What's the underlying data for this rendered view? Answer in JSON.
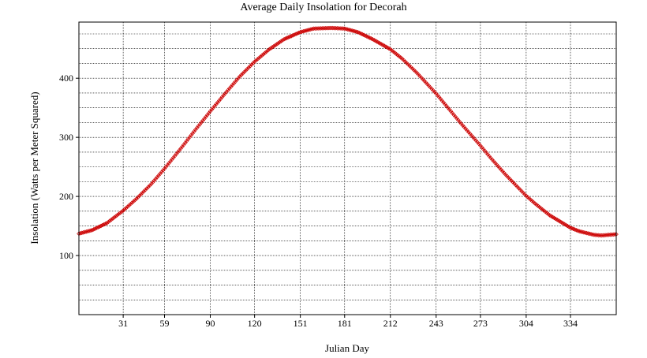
{
  "chart_data": {
    "type": "scatter",
    "title": "Average Daily Insolation for Decorah",
    "xlabel": "Julian Day",
    "ylabel": "Insolation (Watts per Meter Squared)",
    "xlim": [
      1,
      365
    ],
    "ylim": [
      0,
      495
    ],
    "x_ticks": [
      31,
      59,
      90,
      120,
      151,
      181,
      212,
      243,
      273,
      304,
      334
    ],
    "y_ticks": [
      100,
      200,
      300,
      400
    ],
    "grid": true,
    "legend": "none",
    "series_color": "#cc0000",
    "marker": "diamond",
    "series": [
      {
        "x": [
          1,
          10,
          20,
          31,
          40,
          50,
          59,
          70,
          80,
          90,
          100,
          110,
          120,
          130,
          140,
          151,
          160,
          172,
          181,
          190,
          200,
          212,
          220,
          230,
          243,
          250,
          260,
          273,
          280,
          290,
          304,
          310,
          320,
          334,
          340,
          350,
          355,
          365
        ],
        "y": [
          137,
          143,
          155,
          176,
          196,
          221,
          247,
          281,
          313,
          344,
          374,
          403,
          428,
          449,
          466,
          478,
          484,
          485,
          484,
          478,
          466,
          449,
          433,
          409,
          374,
          353,
          323,
          286,
          265,
          237,
          201,
          188,
          168,
          147,
          141,
          135,
          134,
          136
        ]
      }
    ]
  }
}
